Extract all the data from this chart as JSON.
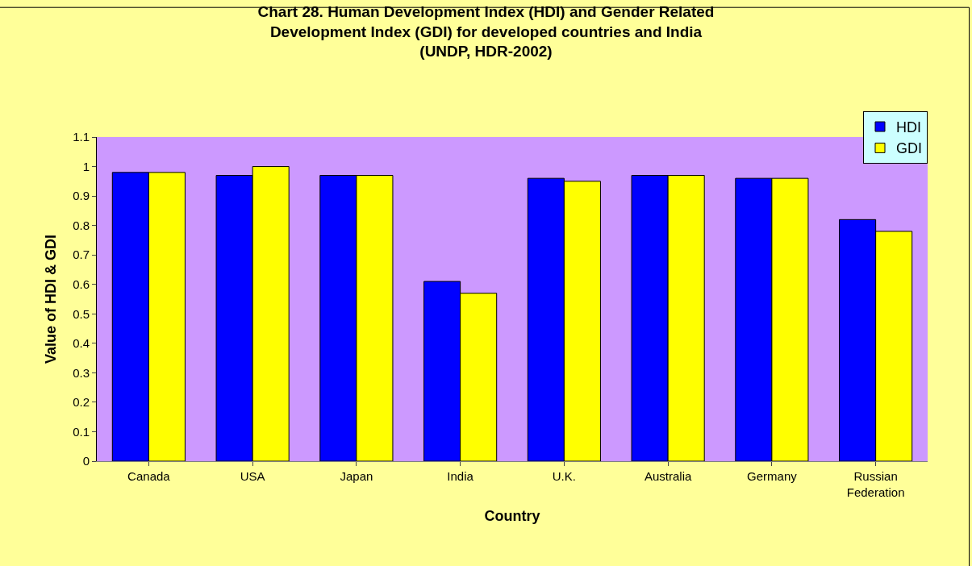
{
  "chart_data": {
    "type": "bar",
    "title": "Chart 28. Human Development Index (HDI) and Gender Related Development Index (GDI) for developed countries and India (UNDP, HDR-2002)",
    "xlabel": "Country",
    "ylabel": "Value of HDI & GDI",
    "categories": [
      "Canada",
      "USA",
      "Japan",
      "India",
      "U.K.",
      "Australia",
      "Germany",
      "Russian Federation"
    ],
    "series": [
      {
        "name": "HDI",
        "color": "#0000ff",
        "values": [
          0.98,
          0.97,
          0.97,
          0.61,
          0.96,
          0.97,
          0.96,
          0.82
        ]
      },
      {
        "name": "GDI",
        "color": "#ffff00",
        "values": [
          0.98,
          1.0,
          0.97,
          0.57,
          0.95,
          0.97,
          0.96,
          0.78
        ]
      }
    ],
    "ylim": [
      0,
      1.1
    ],
    "yticks": [
      0,
      0.1,
      0.2,
      0.3,
      0.4,
      0.5,
      0.6,
      0.7,
      0.8,
      0.9,
      1,
      1.1
    ],
    "grid": false,
    "legend": "top right"
  }
}
